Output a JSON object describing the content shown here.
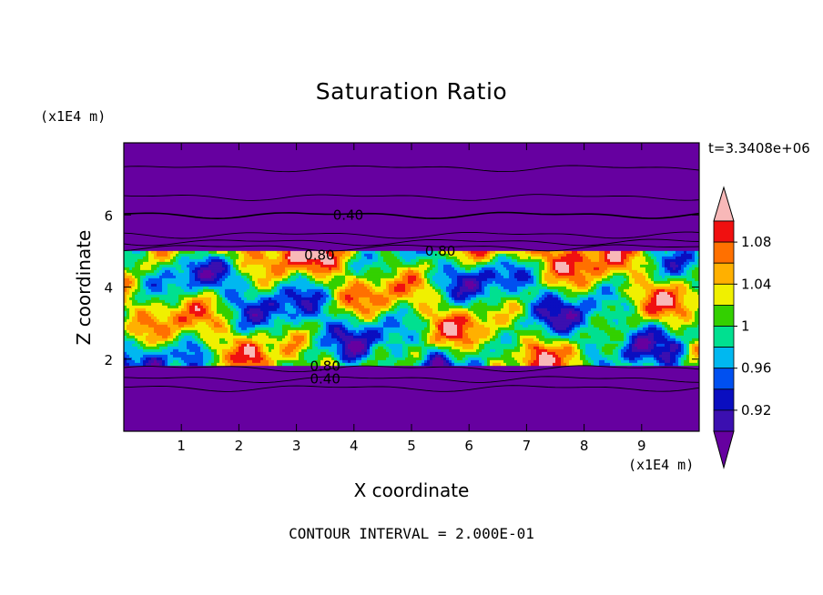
{
  "chart_data": {
    "type": "heatmap",
    "title": "Saturation Ratio",
    "xlabel": "X coordinate",
    "ylabel": "Z coordinate",
    "x_unit": "(x1E4 m)",
    "y_unit": "(x1E4 m)",
    "time_label": "t=3.3408e+06",
    "footer": "CONTOUR INTERVAL = 2.000E-01",
    "xlim": [
      0,
      10
    ],
    "ylim": [
      0,
      8
    ],
    "x_ticks": [
      1,
      2,
      3,
      4,
      5,
      6,
      7,
      8,
      9
    ],
    "y_ticks": [
      2,
      4,
      6
    ],
    "colorbar": {
      "ticks": [
        "1.08",
        "1.04",
        "1",
        "0.96",
        "0.92"
      ],
      "levels": [
        0.9,
        0.92,
        0.94,
        0.96,
        0.98,
        1.0,
        1.02,
        1.04,
        1.06,
        1.08,
        1.1
      ],
      "colors": [
        "#6600a0",
        "#3b0fb0",
        "#0a0ec0",
        "#0050f0",
        "#00b8f0",
        "#00e090",
        "#33d000",
        "#f0f000",
        "#ffb000",
        "#ff7000",
        "#f01010",
        "#f8b8b8"
      ],
      "extend": "both"
    },
    "contour_labels": [
      {
        "text": "0.40",
        "x": 3.9,
        "z": 6.0
      },
      {
        "text": "0.80",
        "x": 3.4,
        "z": 4.88
      },
      {
        "text": "0.80",
        "x": 5.5,
        "z": 5.0
      },
      {
        "text": "0.80",
        "x": 3.5,
        "z": 1.8
      },
      {
        "text": "0.40",
        "x": 3.5,
        "z": 1.45
      }
    ],
    "regions": [
      {
        "z_range": [
          0,
          1.85
        ],
        "level": "below 0.9"
      },
      {
        "z_range": [
          1.85,
          5.0
        ],
        "level": "0.9 to above 1.1"
      },
      {
        "z_range": [
          5.0,
          8.0
        ],
        "level": "below 0.9"
      }
    ]
  }
}
